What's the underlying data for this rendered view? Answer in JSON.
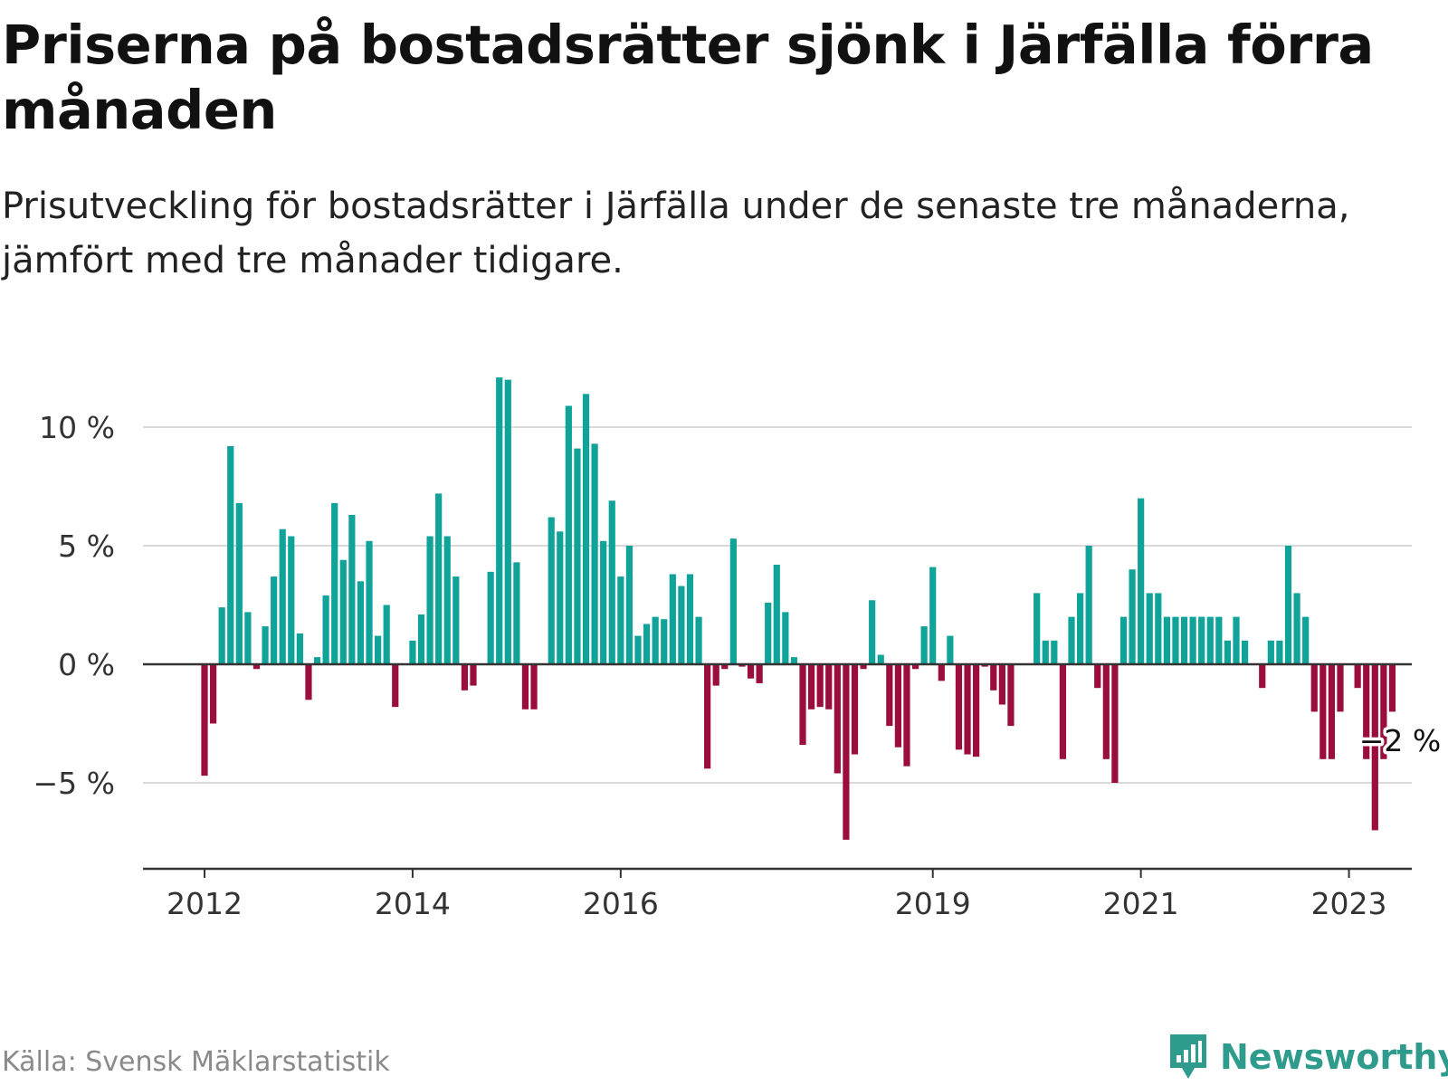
{
  "header": {
    "title": "Priserna på bostadsrätter sjönk i Järfälla förra månaden",
    "subtitle": "Prisutveckling för bostadsrätter i Järfälla under de senaste tre månaderna, jämfört med tre månader tidigare."
  },
  "footer": {
    "source": "Källa: Svensk Mäklarstatistik",
    "brand": "Newsworthy"
  },
  "colors": {
    "positive": "#0fa39a",
    "negative": "#9a0d3d",
    "grid": "#d9d9d9",
    "axis": "#333333"
  },
  "chart_data": {
    "type": "bar",
    "title": "",
    "xlabel": "",
    "ylabel": "",
    "ylim": [
      -8.5,
      12.5
    ],
    "yticks": [
      -5,
      0,
      5,
      10
    ],
    "ytick_labels": [
      "−5 %",
      "0 %",
      "5 %",
      "10 %"
    ],
    "xticks": [
      {
        "label": "2012",
        "index": 0
      },
      {
        "label": "2014",
        "index": 24
      },
      {
        "label": "2016",
        "index": 48
      },
      {
        "label": "2019",
        "index": 84
      },
      {
        "label": "2021",
        "index": 108
      },
      {
        "label": "2023",
        "index": 132
      }
    ],
    "annotation": {
      "text": "−2 %",
      "index": 134
    },
    "values": [
      -4.7,
      -2.5,
      2.4,
      9.2,
      6.8,
      2.2,
      -0.2,
      1.6,
      3.7,
      5.7,
      5.4,
      1.3,
      -1.5,
      0.3,
      2.9,
      6.8,
      4.4,
      6.3,
      3.5,
      5.2,
      1.2,
      2.5,
      -1.8,
      0,
      1.0,
      2.1,
      5.4,
      7.2,
      5.4,
      3.7,
      -1.1,
      -0.9,
      0,
      3.9,
      12.1,
      12.0,
      4.3,
      -1.9,
      -1.9,
      0,
      6.2,
      5.6,
      10.9,
      9.1,
      11.4,
      9.3,
      5.2,
      6.9,
      3.7,
      5.0,
      1.2,
      1.7,
      2.0,
      1.9,
      3.8,
      3.3,
      3.8,
      2.0,
      -4.4,
      -0.9,
      -0.2,
      5.3,
      -0.1,
      -0.6,
      -0.8,
      2.6,
      4.2,
      2.2,
      0.3,
      -3.4,
      -1.9,
      -1.8,
      -1.9,
      -4.6,
      -7.4,
      -3.8,
      -0.2,
      2.7,
      0.4,
      -2.6,
      -3.5,
      -4.3,
      -0.2,
      1.6,
      4.1,
      -0.7,
      1.2,
      -3.6,
      -3.8,
      -3.9,
      -0.1,
      -1.1,
      -1.7,
      -2.6,
      0,
      0,
      3.0,
      1.0,
      1.0,
      -4.0,
      2.0,
      3.0,
      5.0,
      -1.0,
      -4.0,
      -5.0,
      2.0,
      4.0,
      7.0,
      3.0,
      3.0,
      2.0,
      2.0,
      2.0,
      2.0,
      2.0,
      2.0,
      2.0,
      1.0,
      2.0,
      1.0,
      0,
      -1.0,
      1.0,
      1.0,
      5.0,
      3.0,
      2.0,
      -2.0,
      -4.0,
      -4.0,
      -2.0,
      0,
      -1.0,
      -4.0,
      -7.0,
      -4.0,
      -2.0
    ]
  }
}
